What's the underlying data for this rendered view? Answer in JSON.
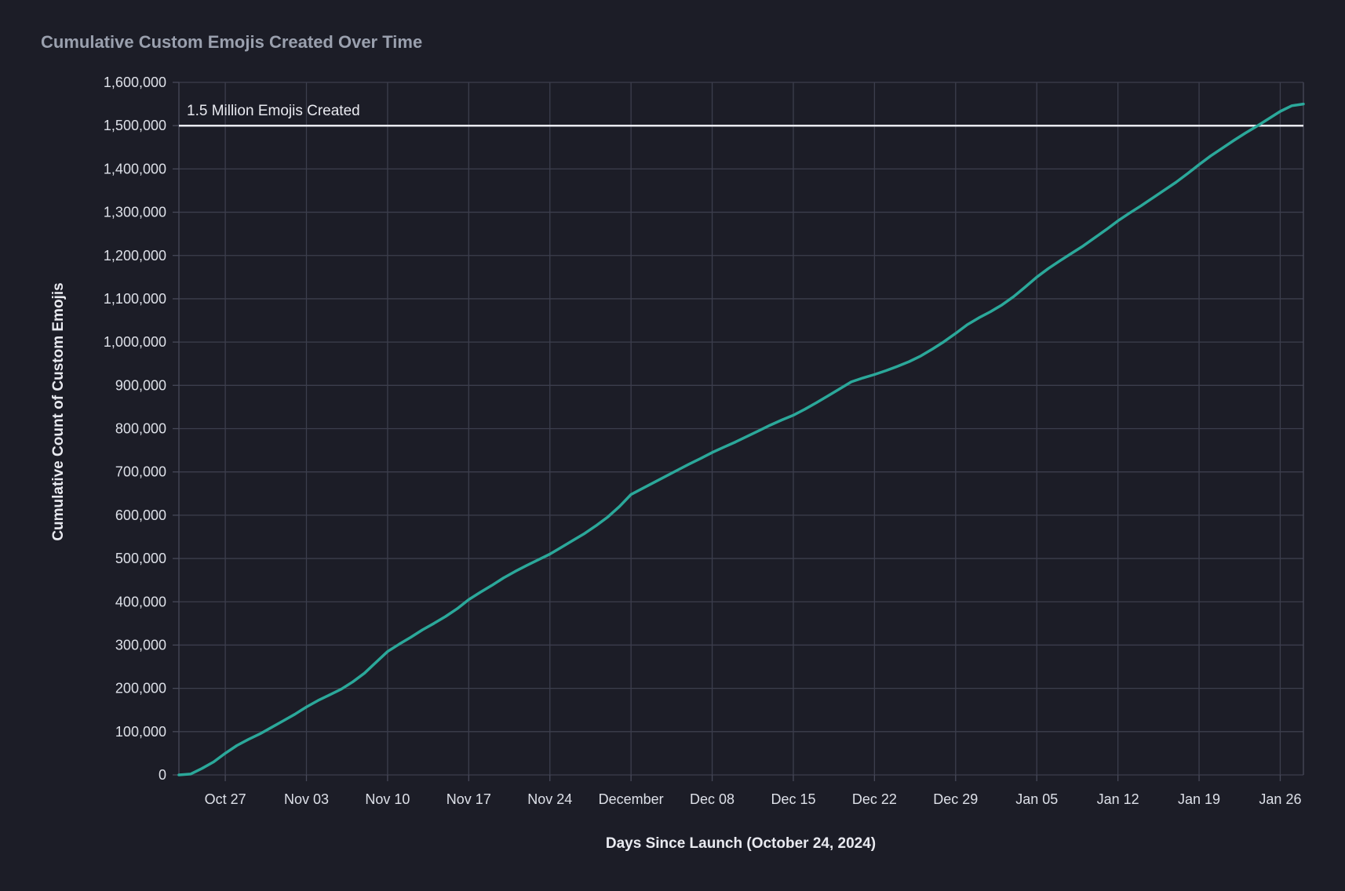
{
  "page": {
    "background": "#1c1d27"
  },
  "chart_data": {
    "type": "line",
    "title": "Cumulative Custom Emojis Created Over Time",
    "xlabel": "Days Since Launch (October 24, 2024)",
    "ylabel": "Cumulative Count of Custom Emojis",
    "legend": false,
    "grid": true,
    "annotation": {
      "text": "1.5 Million Emojis Created",
      "value": 1500000
    },
    "x_axis": {
      "launch_date": "October 24, 2024",
      "tick_labels": [
        "Oct 27",
        "Nov 03",
        "Nov 10",
        "Nov 17",
        "Nov 24",
        "December",
        "Dec 08",
        "Dec 15",
        "Dec 22",
        "Dec 29",
        "Jan 05",
        "Jan 12",
        "Jan 19",
        "Jan 26"
      ],
      "tick_days": [
        3,
        10,
        17,
        24,
        31,
        38,
        45,
        52,
        59,
        66,
        73,
        80,
        87,
        94
      ],
      "range_days": [
        -1,
        96
      ]
    },
    "y_axis": {
      "range": [
        0,
        1600000
      ],
      "tick_step": 100000,
      "tick_values": [
        0,
        100000,
        200000,
        300000,
        400000,
        500000,
        600000,
        700000,
        800000,
        900000,
        1000000,
        1100000,
        1200000,
        1300000,
        1400000,
        1500000,
        1600000
      ]
    },
    "colors": {
      "background": "#1c1d27",
      "grid": "#3c3e4d",
      "axis_border": "#474959",
      "line": "#2ba89a",
      "reference_line": "#e9eaf0",
      "title": "#9aa0ae",
      "tick_label": "#dde0e8",
      "axis_title": "#e9eaf0",
      "annotation": "#e9eaf0"
    },
    "series": [
      {
        "name": "Cumulative Custom Emojis",
        "start_day": -1,
        "dates": [
          "Oct 23",
          "Oct 24",
          "Oct 25",
          "Oct 26",
          "Oct 27",
          "Oct 28",
          "Oct 29",
          "Oct 30",
          "Oct 31",
          "Nov 01",
          "Nov 02",
          "Nov 03",
          "Nov 04",
          "Nov 05",
          "Nov 06",
          "Nov 07",
          "Nov 08",
          "Nov 09",
          "Nov 10",
          "Nov 11",
          "Nov 12",
          "Nov 13",
          "Nov 14",
          "Nov 15",
          "Nov 16",
          "Nov 17",
          "Nov 18",
          "Nov 19",
          "Nov 20",
          "Nov 21",
          "Nov 22",
          "Nov 23",
          "Nov 24",
          "Nov 25",
          "Nov 26",
          "Nov 27",
          "Nov 28",
          "Nov 29",
          "Nov 30",
          "Dec 01",
          "Dec 02",
          "Dec 03",
          "Dec 04",
          "Dec 05",
          "Dec 06",
          "Dec 07",
          "Dec 08",
          "Dec 09",
          "Dec 10",
          "Dec 11",
          "Dec 12",
          "Dec 13",
          "Dec 14",
          "Dec 15",
          "Dec 16",
          "Dec 17",
          "Dec 18",
          "Dec 19",
          "Dec 20",
          "Dec 21",
          "Dec 22",
          "Dec 23",
          "Dec 24",
          "Dec 25",
          "Dec 26",
          "Dec 27",
          "Dec 28",
          "Dec 29",
          "Dec 30",
          "Dec 31",
          "Jan 01",
          "Jan 02",
          "Jan 03",
          "Jan 04",
          "Jan 05",
          "Jan 06",
          "Jan 07",
          "Jan 08",
          "Jan 09",
          "Jan 10",
          "Jan 11",
          "Jan 12",
          "Jan 13",
          "Jan 14",
          "Jan 15",
          "Jan 16",
          "Jan 17",
          "Jan 18",
          "Jan 19",
          "Jan 20",
          "Jan 21",
          "Jan 22",
          "Jan 23",
          "Jan 24",
          "Jan 25",
          "Jan 26",
          "Jan 27",
          "Jan 28"
        ],
        "values": [
          0,
          2000,
          15000,
          30000,
          50000,
          68000,
          82000,
          95000,
          110000,
          125000,
          140000,
          157000,
          172000,
          185000,
          198000,
          215000,
          235000,
          260000,
          285000,
          302000,
          318000,
          335000,
          350000,
          366000,
          384000,
          405000,
          422000,
          438000,
          455000,
          470000,
          484000,
          497000,
          510000,
          526000,
          542000,
          558000,
          576000,
          596000,
          620000,
          648000,
          662000,
          676000,
          690000,
          704000,
          718000,
          731000,
          745000,
          757000,
          769000,
          782000,
          795000,
          808000,
          820000,
          831000,
          845000,
          860000,
          876000,
          892000,
          908000,
          917000,
          925000,
          934000,
          944000,
          955000,
          968000,
          984000,
          1001000,
          1020000,
          1040000,
          1056000,
          1070000,
          1086000,
          1105000,
          1127000,
          1150000,
          1170000,
          1188000,
          1205000,
          1222000,
          1241000,
          1260000,
          1280000,
          1298000,
          1315000,
          1333000,
          1351000,
          1369000,
          1389000,
          1410000,
          1430000,
          1448000,
          1466000,
          1483000,
          1499000,
          1516000,
          1533000,
          1546000,
          1550000
        ]
      }
    ]
  }
}
